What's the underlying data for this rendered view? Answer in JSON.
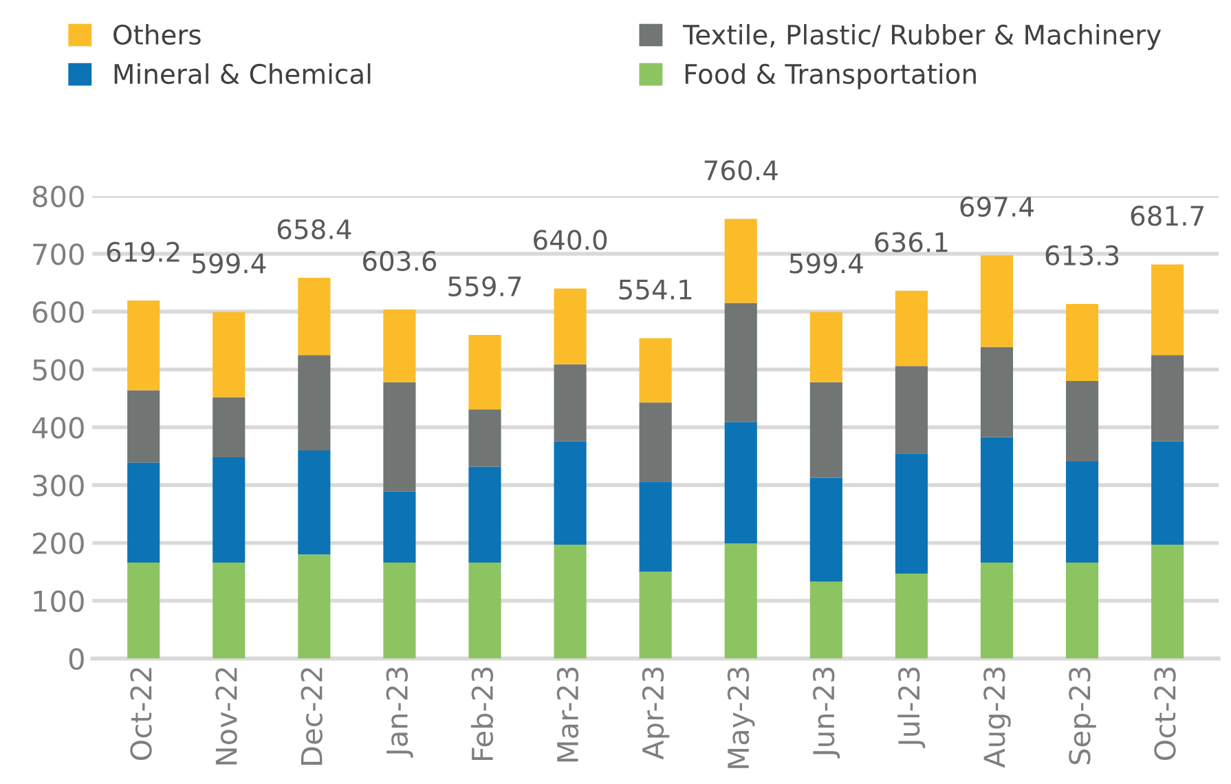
{
  "chart_data": {
    "type": "bar",
    "stacked": true,
    "categories": [
      "Oct-22",
      "Nov-22",
      "Dec-22",
      "Jan-23",
      "Feb-23",
      "Mar-23",
      "Apr-23",
      "May-23",
      "Jun-23",
      "Jul-23",
      "Aug-23",
      "Sep-23",
      "Oct-23"
    ],
    "series": [
      {
        "name": "Food & Transportation",
        "color": "#8dc462",
        "values": [
          166,
          166,
          180,
          166,
          166,
          197,
          150,
          199,
          133,
          147,
          166,
          166,
          197
        ]
      },
      {
        "name": "Mineral & Chemical",
        "color": "#0c74b4",
        "values": [
          173,
          182,
          180,
          123,
          166,
          179,
          156,
          210,
          180,
          208,
          217,
          175,
          179
        ]
      },
      {
        "name": "Textile, Plastic/ Rubber & Machinery",
        "color": "#717574",
        "values": [
          125,
          104,
          165,
          189,
          99,
          133,
          137,
          206,
          165,
          151,
          156,
          139,
          149
        ]
      },
      {
        "name": "Others",
        "color": "#fbbc2a",
        "values": [
          155.2,
          147.4,
          133.4,
          125.6,
          128.7,
          131,
          111.1,
          145.4,
          121.4,
          130.1,
          158.4,
          133.3,
          156.7
        ]
      }
    ],
    "totals": [
      "619.2",
      "599.4",
      "658.4",
      "603.6",
      "559.7",
      "640.0",
      "554.1",
      "760.4",
      "599.4",
      "636.1",
      "697.4",
      "613.3",
      "681.7"
    ],
    "ylim": [
      0,
      800
    ],
    "yticks": [
      0,
      100,
      200,
      300,
      400,
      500,
      600,
      700,
      800
    ],
    "grid": "y",
    "legend": "top"
  }
}
